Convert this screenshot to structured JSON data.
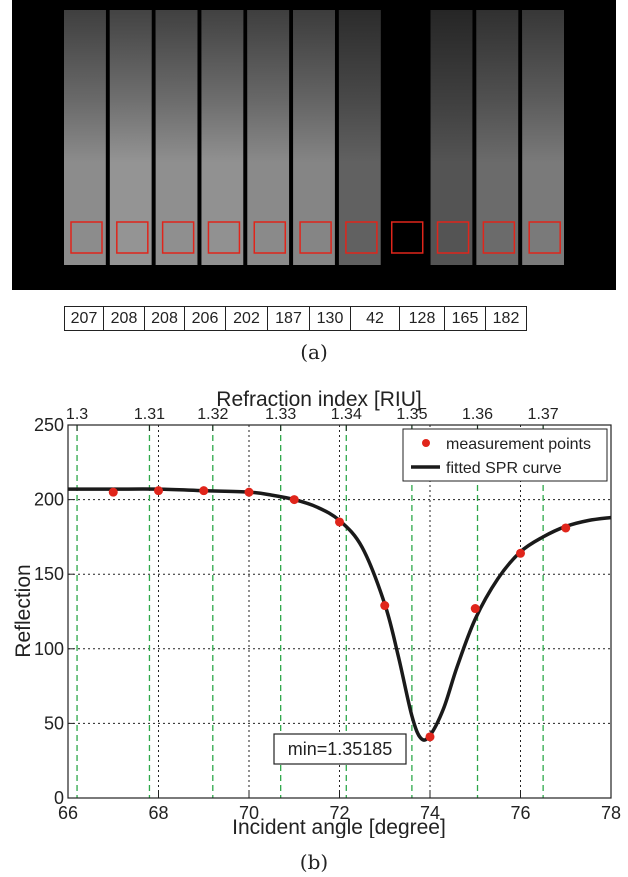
{
  "panel_a": {
    "caption": "(a)",
    "strip_levels": [
      0.55,
      0.58,
      0.56,
      0.57,
      0.54,
      0.52,
      0.38,
      0.0,
      0.33,
      0.42,
      0.48
    ],
    "values": [
      "207",
      "208",
      "208",
      "206",
      "202",
      "187",
      "130",
      "42",
      "128",
      "165",
      "182"
    ],
    "roi_color": "#e0251b"
  },
  "panel_b": {
    "caption": "(b)",
    "min_label": "min=1.35185"
  },
  "chart_data": {
    "type": "line",
    "title": "",
    "xlabel": "Incident angle [degree]",
    "ylabel": "Reflection",
    "x2label": "Refraction index [RIU]",
    "xlim": [
      66,
      78
    ],
    "ylim": [
      0,
      250
    ],
    "xticks": [
      66,
      68,
      70,
      72,
      74,
      76,
      78
    ],
    "yticks": [
      0,
      50,
      100,
      150,
      200,
      250
    ],
    "x2ticks": [
      {
        "label": "1.3",
        "angle": 66.2
      },
      {
        "label": "1.31",
        "angle": 67.8
      },
      {
        "label": "1.32",
        "angle": 69.2
      },
      {
        "label": "1.33",
        "angle": 70.7
      },
      {
        "label": "1.34",
        "angle": 72.15
      },
      {
        "label": "1.35",
        "angle": 73.6
      },
      {
        "label": "1.36",
        "angle": 75.05
      },
      {
        "label": "1.37",
        "angle": 76.5
      }
    ],
    "grid": true,
    "legend_position": "top-right",
    "series": [
      {
        "name": "measurement points",
        "style": "points",
        "color": "#e0251b",
        "x": [
          67,
          68,
          69,
          70,
          71,
          72,
          73,
          74,
          75,
          76,
          77
        ],
        "y": [
          205,
          206,
          206,
          205,
          200,
          185,
          129,
          41,
          127,
          164,
          181
        ]
      },
      {
        "name": "fitted SPR curve",
        "style": "line",
        "color": "#1a1a1a",
        "x": [
          66,
          67,
          68,
          69,
          70,
          70.5,
          71,
          71.5,
          72,
          72.5,
          73,
          73.3,
          73.6,
          73.8,
          74,
          74.3,
          74.6,
          75,
          75.5,
          76,
          76.5,
          77,
          77.5,
          78
        ],
        "y": [
          207,
          207,
          207,
          206,
          205,
          203,
          200,
          195,
          186,
          168,
          130,
          95,
          55,
          40,
          42,
          60,
          88,
          120,
          147,
          165,
          175,
          182,
          186,
          188
        ]
      }
    ],
    "annotations": [
      "min=1.35185"
    ]
  }
}
